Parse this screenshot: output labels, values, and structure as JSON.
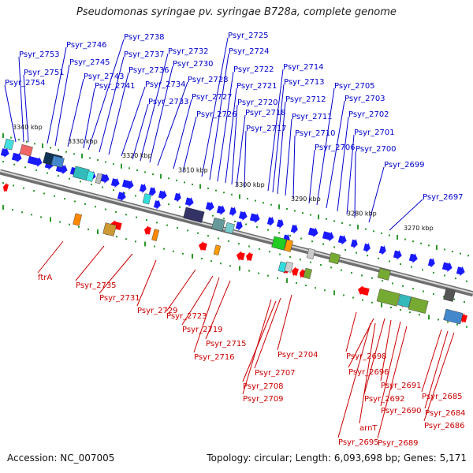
{
  "title": "Pseudomonas syringae pv. syringae B728a, complete genome",
  "footer": {
    "accession": "Accession: NC_007005",
    "summary": "Topology: circular; Length: 6,093,698 bp; Genes: 5,171"
  },
  "colors": {
    "backbone": "#9a9a9a",
    "forward_gene": "#1a1aff",
    "reverse_gene": "#ff0000",
    "tick": "#2a9a2a",
    "forward_label": "#0000cc",
    "reverse_label": "#cc0000",
    "coordinate_label": "#111111"
  },
  "coordinate_labels": [
    "3340 kbp",
    "3330 kbp",
    "3320 kbp",
    "3310 kbp",
    "3300 kbp",
    "3290 kbp",
    "3280 kbp",
    "3270 kbp"
  ],
  "forward_genes": [
    "Psyr_2754",
    "Psyr_2753",
    "Psyr_2751",
    "Psyr_2746",
    "Psyr_2745",
    "Psyr_2743",
    "Psyr_2741",
    "Psyr_2738",
    "Psyr_2737",
    "Psyr_2736",
    "Psyr_2734",
    "Psyr_2733",
    "Psyr_2732",
    "Psyr_2730",
    "Psyr_2728",
    "Psyr_2727",
    "Psyr_2726",
    "Psyr_2725",
    "Psyr_2724",
    "Psyr_2722",
    "Psyr_2721",
    "Psyr_2720",
    "Psyr_2718",
    "Psyr_2717",
    "Psyr_2714",
    "Psyr_2713",
    "Psyr_2712",
    "Psyr_2711",
    "Psyr_2710",
    "Psyr_2706",
    "Psyr_2705",
    "Psyr_2703",
    "Psyr_2702",
    "Psyr_2701",
    "Psyr_2700",
    "Psyr_2699",
    "Psyr_2697"
  ],
  "reverse_genes": [
    "ftrA",
    "Psyr_2735",
    "Psyr_2731",
    "Psyr_2729",
    "Psyr_2723",
    "Psyr_2719",
    "Psyr_2715",
    "Psyr_2716",
    "Psyr_2704",
    "Psyr_2707",
    "Psyr_2708",
    "Psyr_2709",
    "Psyr_2698",
    "Psyr_2696",
    "Psyr_2691",
    "Psyr_2692",
    "Psyr_2690",
    "arnT",
    "Psyr_2695",
    "Psyr_2689",
    "Psyr_2685",
    "Psyr_2684",
    "Psyr_2686"
  ]
}
